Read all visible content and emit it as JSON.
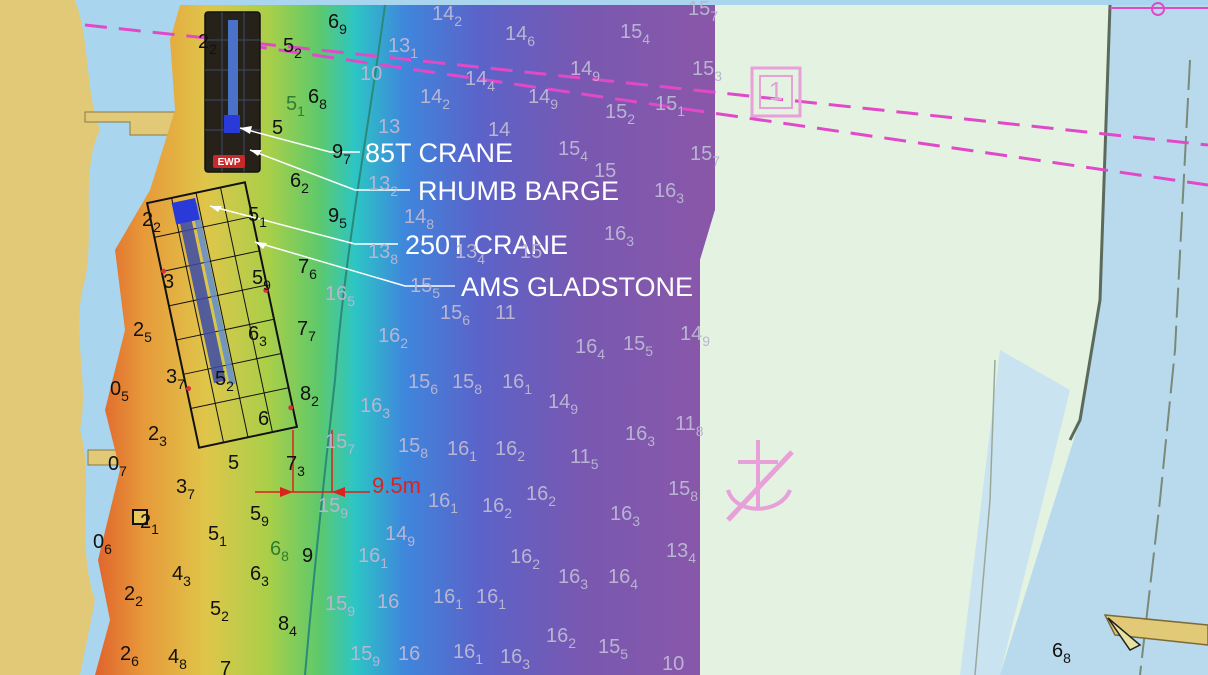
{
  "map": {
    "labels": {
      "crane_85t": "85T CRANE",
      "rhumb_barge": "RHUMB BARGE",
      "crane_250t": "250T CRANE",
      "ams_gladstone": "AMS GLADSTONE",
      "dimension": "9.5m",
      "ewp": "EWP",
      "anchorage_box": "1"
    },
    "soundings": [
      {
        "m": "6",
        "s": "9",
        "c": "dark"
      },
      {
        "m": "2",
        "s": "2",
        "c": "dark"
      },
      {
        "m": "5",
        "s": "2",
        "c": "dark"
      },
      {
        "m": "6",
        "s": "8",
        "c": "dark"
      },
      {
        "m": "5",
        "s": "1",
        "c": "green"
      },
      {
        "m": "5",
        "s": "",
        "c": "dark"
      },
      {
        "m": "9",
        "s": "7",
        "c": "dark"
      },
      {
        "m": "6",
        "s": "2",
        "c": "dark"
      },
      {
        "m": "9",
        "s": "5",
        "c": "dark"
      },
      {
        "m": "5",
        "s": "1",
        "c": "dark"
      },
      {
        "m": "2",
        "s": "2",
        "c": "dark"
      },
      {
        "m": "7",
        "s": "6",
        "c": "dark"
      },
      {
        "m": "5",
        "s": "9",
        "c": "dark"
      },
      {
        "m": "3",
        "s": "",
        "c": "dark"
      },
      {
        "m": "2",
        "s": "5",
        "c": "dark"
      },
      {
        "m": "6",
        "s": "3",
        "c": "dark"
      },
      {
        "m": "7",
        "s": "7",
        "c": "dark"
      },
      {
        "m": "0",
        "s": "5",
        "c": "dark"
      },
      {
        "m": "3",
        "s": "7",
        "c": "dark"
      },
      {
        "m": "5",
        "s": "2",
        "c": "dark"
      },
      {
        "m": "8",
        "s": "2",
        "c": "dark"
      },
      {
        "m": "2",
        "s": "3",
        "c": "dark"
      },
      {
        "m": "6",
        "s": "",
        "c": "dark"
      },
      {
        "m": "0",
        "s": "7",
        "c": "dark"
      },
      {
        "m": "5",
        "s": "",
        "c": "dark"
      },
      {
        "m": "7",
        "s": "3",
        "c": "dark"
      },
      {
        "m": "3",
        "s": "7",
        "c": "dark"
      },
      {
        "m": "5",
        "s": "9",
        "c": "dark"
      },
      {
        "m": "2",
        "s": "1",
        "c": "dark"
      },
      {
        "m": "0",
        "s": "6",
        "c": "dark"
      },
      {
        "m": "5",
        "s": "1",
        "c": "dark"
      },
      {
        "m": "6",
        "s": "8",
        "c": "green"
      },
      {
        "m": "9",
        "s": "",
        "c": "dark"
      },
      {
        "m": "4",
        "s": "3",
        "c": "dark"
      },
      {
        "m": "6",
        "s": "3",
        "c": "dark"
      },
      {
        "m": "2",
        "s": "2",
        "c": "dark"
      },
      {
        "m": "5",
        "s": "2",
        "c": "dark"
      },
      {
        "m": "8",
        "s": "4",
        "c": "dark"
      },
      {
        "m": "2",
        "s": "6",
        "c": "dark"
      },
      {
        "m": "4",
        "s": "8",
        "c": "dark"
      },
      {
        "m": "7",
        "s": "",
        "c": "dark"
      },
      {
        "m": "6",
        "s": "8",
        "c": "dark"
      },
      {
        "m": "14",
        "s": "2",
        "c": "light"
      },
      {
        "m": "14",
        "s": "6",
        "c": "light"
      },
      {
        "m": "15",
        "s": "4",
        "c": "light"
      },
      {
        "m": "15",
        "s": "7",
        "c": "light"
      },
      {
        "m": "13",
        "s": "1",
        "c": "light"
      },
      {
        "m": "14",
        "s": "4",
        "c": "light"
      },
      {
        "m": "14",
        "s": "9",
        "c": "light"
      },
      {
        "m": "15",
        "s": "3",
        "c": "light"
      },
      {
        "m": "10",
        "s": "",
        "c": "light"
      },
      {
        "m": "14",
        "s": "2",
        "c": "light"
      },
      {
        "m": "14",
        "s": "9",
        "c": "light"
      },
      {
        "m": "15",
        "s": "2",
        "c": "light"
      },
      {
        "m": "15",
        "s": "1",
        "c": "light"
      },
      {
        "m": "13",
        "s": "",
        "c": "light"
      },
      {
        "m": "14",
        "s": "",
        "c": "light"
      },
      {
        "m": "15",
        "s": "4",
        "c": "light"
      },
      {
        "m": "15",
        "s": "7",
        "c": "light"
      },
      {
        "m": "15",
        "s": "",
        "c": "light"
      },
      {
        "m": "13",
        "s": "2",
        "c": "light"
      },
      {
        "m": "16",
        "s": "3",
        "c": "light"
      },
      {
        "m": "14",
        "s": "8",
        "c": "light"
      },
      {
        "m": "16",
        "s": "3",
        "c": "light"
      },
      {
        "m": "13",
        "s": "8",
        "c": "light"
      },
      {
        "m": "13",
        "s": "4",
        "c": "light"
      },
      {
        "m": "15",
        "s": "",
        "c": "light"
      },
      {
        "m": "15",
        "s": "5",
        "c": "light"
      },
      {
        "m": "15",
        "s": "6",
        "c": "light"
      },
      {
        "m": "11",
        "s": "",
        "c": "light"
      },
      {
        "m": "16",
        "s": "5",
        "c": "light"
      },
      {
        "m": "14",
        "s": "9",
        "c": "light"
      },
      {
        "m": "16",
        "s": "2",
        "c": "light"
      },
      {
        "m": "16",
        "s": "4",
        "c": "light"
      },
      {
        "m": "15",
        "s": "5",
        "c": "light"
      },
      {
        "m": "15",
        "s": "6",
        "c": "light"
      },
      {
        "m": "15",
        "s": "8",
        "c": "light"
      },
      {
        "m": "16",
        "s": "1",
        "c": "light"
      },
      {
        "m": "14",
        "s": "9",
        "c": "light"
      },
      {
        "m": "16",
        "s": "3",
        "c": "light"
      },
      {
        "m": "16",
        "s": "3",
        "c": "light"
      },
      {
        "m": "11",
        "s": "8",
        "c": "light"
      },
      {
        "m": "15",
        "s": "7",
        "c": "light"
      },
      {
        "m": "15",
        "s": "8",
        "c": "light"
      },
      {
        "m": "16",
        "s": "1",
        "c": "light"
      },
      {
        "m": "16",
        "s": "2",
        "c": "light"
      },
      {
        "m": "11",
        "s": "5",
        "c": "light"
      },
      {
        "m": "15",
        "s": "9",
        "c": "light"
      },
      {
        "m": "16",
        "s": "1",
        "c": "light"
      },
      {
        "m": "16",
        "s": "2",
        "c": "light"
      },
      {
        "m": "16",
        "s": "2",
        "c": "light"
      },
      {
        "m": "16",
        "s": "3",
        "c": "light"
      },
      {
        "m": "15",
        "s": "8",
        "c": "light"
      },
      {
        "m": "14",
        "s": "9",
        "c": "light"
      },
      {
        "m": "16",
        "s": "1",
        "c": "light"
      },
      {
        "m": "16",
        "s": "2",
        "c": "light"
      },
      {
        "m": "16",
        "s": "3",
        "c": "light"
      },
      {
        "m": "16",
        "s": "4",
        "c": "light"
      },
      {
        "m": "13",
        "s": "4",
        "c": "light"
      },
      {
        "m": "15",
        "s": "9",
        "c": "light"
      },
      {
        "m": "16",
        "s": "",
        "c": "light"
      },
      {
        "m": "16",
        "s": "1",
        "c": "light"
      },
      {
        "m": "16",
        "s": "1",
        "c": "light"
      },
      {
        "m": "16",
        "s": "2",
        "c": "light"
      },
      {
        "m": "15",
        "s": "5",
        "c": "light"
      },
      {
        "m": "15",
        "s": "9",
        "c": "light"
      },
      {
        "m": "16",
        "s": "",
        "c": "light"
      },
      {
        "m": "16",
        "s": "1",
        "c": "light"
      },
      {
        "m": "16",
        "s": "3",
        "c": "light"
      },
      {
        "m": "10",
        "s": "",
        "c": "light"
      }
    ]
  }
}
